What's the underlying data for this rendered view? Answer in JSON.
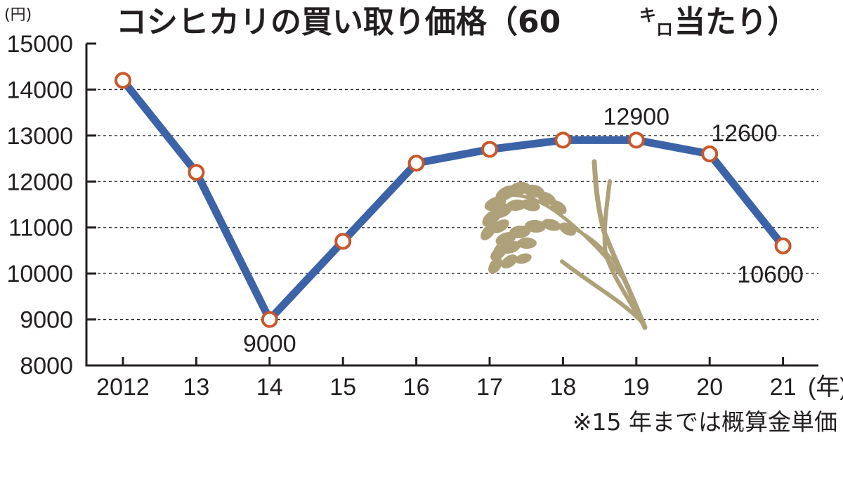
{
  "title_main": "コシヒカリの買い取り価格（60",
  "title_unit_ki": "キ",
  "title_unit_ro": "ロ",
  "title_tail": "当たり）",
  "footnote": "※15 年までは概算金単価",
  "colors": {
    "line": "#3c63a8",
    "marker_edge": "#c8572a",
    "marker_fill": "#ffffff",
    "grid": "#231f20",
    "axis": "#231f20",
    "rice": "#aea17a"
  },
  "chart_data": {
    "type": "line",
    "title": "コシヒカリの買い取り価格（60キロ当たり）",
    "ylabel": "(円)",
    "xlabel": "(年)",
    "x": [
      "2012",
      "13",
      "14",
      "15",
      "16",
      "17",
      "18",
      "19",
      "20",
      "21"
    ],
    "values": [
      14200,
      12200,
      9000,
      10700,
      12400,
      12700,
      12900,
      12900,
      12600,
      10600
    ],
    "ylim": [
      8000,
      15000
    ],
    "yticks": [
      8000,
      9000,
      10000,
      11000,
      12000,
      13000,
      14000,
      15000
    ],
    "grid": "horizontal dashed",
    "data_labels": [
      {
        "index": 2,
        "text": "9000",
        "pos": "below"
      },
      {
        "index": 7,
        "text": "12900",
        "pos": "above"
      },
      {
        "index": 8,
        "text": "12600",
        "pos": "above-right"
      },
      {
        "index": 9,
        "text": "10600",
        "pos": "below"
      }
    ]
  }
}
